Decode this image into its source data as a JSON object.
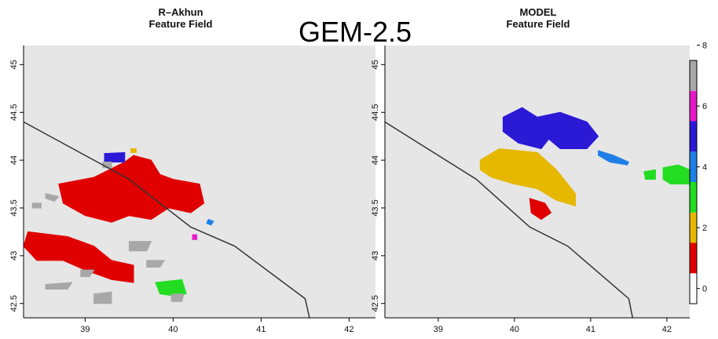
{
  "overlay_label": "GEM-2.5",
  "colors": {
    "panel_bg": "#e6e6e6",
    "boundary": "#333333",
    "red": "#e00000",
    "gray": "#a8a8a8",
    "blue": "#2a1ad6",
    "green": "#22dd22",
    "gold": "#e6b800",
    "lightblue": "#1e7fe6",
    "magenta": "#e619c8"
  },
  "chart_data": [
    {
      "type": "heatmap",
      "title_line1": "R–Akhun",
      "title_line2": "Feature Field",
      "xlim": [
        38.3,
        42.3
      ],
      "ylim": [
        42.35,
        45.2
      ],
      "x_ticks": [
        39,
        40,
        41,
        42
      ],
      "y_ticks": [
        42.5,
        43,
        43.5,
        44,
        44.5,
        45
      ],
      "y_tick_labels": [
        "42.5",
        "43",
        "43.5",
        "44",
        "44.5",
        "45"
      ],
      "boundary": [
        [
          38.3,
          44.4
        ],
        [
          39.5,
          43.8
        ],
        [
          40.2,
          43.3
        ],
        [
          40.7,
          43.1
        ],
        [
          41.5,
          42.55
        ],
        [
          41.55,
          42.35
        ]
      ],
      "features": [
        {
          "color": "red",
          "poly": [
            [
              38.7,
              43.75
            ],
            [
              39.1,
              43.82
            ],
            [
              39.45,
              43.98
            ],
            [
              39.55,
              44.05
            ],
            [
              39.75,
              44.0
            ],
            [
              39.85,
              43.85
            ],
            [
              40.0,
              43.8
            ],
            [
              40.3,
              43.75
            ],
            [
              40.35,
              43.55
            ],
            [
              40.2,
              43.45
            ],
            [
              39.95,
              43.5
            ],
            [
              39.75,
              43.38
            ],
            [
              39.5,
              43.42
            ],
            [
              39.3,
              43.35
            ],
            [
              39.0,
              43.42
            ],
            [
              38.75,
              43.55
            ]
          ]
        },
        {
          "color": "red",
          "poly": [
            [
              38.35,
              43.25
            ],
            [
              38.8,
              43.2
            ],
            [
              39.1,
              43.1
            ],
            [
              39.3,
              42.95
            ],
            [
              39.55,
              42.9
            ],
            [
              39.55,
              42.72
            ],
            [
              39.3,
              42.75
            ],
            [
              39.0,
              42.85
            ],
            [
              38.75,
              42.95
            ],
            [
              38.45,
              42.95
            ],
            [
              38.3,
              43.1
            ]
          ]
        },
        {
          "color": "blue",
          "poly": [
            [
              39.22,
              44.07
            ],
            [
              39.45,
              44.08
            ],
            [
              39.45,
              43.98
            ],
            [
              39.22,
              43.98
            ]
          ]
        },
        {
          "color": "gold",
          "poly": [
            [
              39.52,
              44.12
            ],
            [
              39.58,
              44.12
            ],
            [
              39.58,
              44.08
            ],
            [
              39.52,
              44.08
            ]
          ]
        },
        {
          "color": "magenta",
          "poly": [
            [
              40.22,
              43.22
            ],
            [
              40.27,
              43.22
            ],
            [
              40.27,
              43.17
            ],
            [
              40.22,
              43.17
            ]
          ]
        },
        {
          "color": "lightblue",
          "poly": [
            [
              40.4,
              43.38
            ],
            [
              40.46,
              43.36
            ],
            [
              40.43,
              43.32
            ],
            [
              40.38,
              43.34
            ]
          ]
        },
        {
          "color": "green",
          "poly": [
            [
              39.8,
              42.72
            ],
            [
              40.1,
              42.75
            ],
            [
              40.15,
              42.6
            ],
            [
              40.0,
              42.58
            ],
            [
              39.85,
              42.6
            ]
          ]
        },
        {
          "color": "gray",
          "poly": [
            [
              38.4,
              43.55
            ],
            [
              38.5,
              43.55
            ],
            [
              38.5,
              43.5
            ],
            [
              38.4,
              43.5
            ]
          ]
        },
        {
          "color": "gray",
          "poly": [
            [
              38.55,
              43.65
            ],
            [
              38.7,
              43.62
            ],
            [
              38.65,
              43.57
            ],
            [
              38.55,
              43.6
            ]
          ]
        },
        {
          "color": "gray",
          "poly": [
            [
              38.55,
              42.7
            ],
            [
              38.85,
              42.72
            ],
            [
              38.8,
              42.65
            ],
            [
              38.55,
              42.65
            ]
          ]
        },
        {
          "color": "gray",
          "poly": [
            [
              39.1,
              42.6
            ],
            [
              39.3,
              42.62
            ],
            [
              39.3,
              42.5
            ],
            [
              39.1,
              42.5
            ]
          ]
        },
        {
          "color": "gray",
          "poly": [
            [
              39.5,
              43.15
            ],
            [
              39.75,
              43.15
            ],
            [
              39.7,
              43.05
            ],
            [
              39.5,
              43.05
            ]
          ]
        },
        {
          "color": "gray",
          "poly": [
            [
              39.7,
              42.95
            ],
            [
              39.9,
              42.95
            ],
            [
              39.85,
              42.88
            ],
            [
              39.7,
              42.88
            ]
          ]
        },
        {
          "color": "gray",
          "poly": [
            [
              39.2,
              43.98
            ],
            [
              39.3,
              43.98
            ],
            [
              39.3,
              43.92
            ],
            [
              39.2,
              43.92
            ]
          ]
        },
        {
          "color": "gray",
          "poly": [
            [
              38.95,
              42.85
            ],
            [
              39.1,
              42.85
            ],
            [
              39.05,
              42.78
            ],
            [
              38.95,
              42.78
            ]
          ]
        },
        {
          "color": "gray",
          "poly": [
            [
              39.98,
              42.6
            ],
            [
              40.12,
              42.6
            ],
            [
              40.1,
              42.52
            ],
            [
              39.98,
              42.52
            ]
          ]
        }
      ]
    },
    {
      "type": "heatmap",
      "title_line1": "MODEL",
      "title_line2": "Feature Field",
      "xlim": [
        38.3,
        42.3
      ],
      "ylim": [
        42.35,
        45.2
      ],
      "x_ticks": [
        39,
        40,
        41,
        42
      ],
      "y_ticks": [
        42.5,
        43,
        43.5,
        44,
        44.5,
        45
      ],
      "y_tick_labels": [
        "42.5",
        "43",
        "43.5",
        "44",
        "44.5",
        "45"
      ],
      "boundary": [
        [
          38.3,
          44.4
        ],
        [
          39.5,
          43.8
        ],
        [
          40.2,
          43.3
        ],
        [
          40.7,
          43.1
        ],
        [
          41.5,
          42.55
        ],
        [
          41.55,
          42.35
        ]
      ],
      "features": [
        {
          "color": "blue",
          "poly": [
            [
              39.85,
              44.45
            ],
            [
              40.1,
              44.55
            ],
            [
              40.3,
              44.45
            ],
            [
              40.6,
              44.5
            ],
            [
              40.95,
              44.4
            ],
            [
              41.1,
              44.25
            ],
            [
              40.95,
              44.12
            ],
            [
              40.6,
              44.12
            ],
            [
              40.45,
              44.22
            ],
            [
              40.35,
              44.12
            ],
            [
              40.05,
              44.18
            ],
            [
              39.85,
              44.3
            ]
          ]
        },
        {
          "color": "gold",
          "poly": [
            [
              39.55,
              44.0
            ],
            [
              39.8,
              44.12
            ],
            [
              40.3,
              44.08
            ],
            [
              40.55,
              43.9
            ],
            [
              40.8,
              43.65
            ],
            [
              40.8,
              43.52
            ],
            [
              40.55,
              43.58
            ],
            [
              40.3,
              43.7
            ],
            [
              40.0,
              43.75
            ],
            [
              39.7,
              43.82
            ],
            [
              39.55,
              43.9
            ]
          ]
        },
        {
          "color": "red",
          "poly": [
            [
              40.2,
              43.6
            ],
            [
              40.4,
              43.55
            ],
            [
              40.48,
              43.45
            ],
            [
              40.35,
              43.38
            ],
            [
              40.22,
              43.45
            ]
          ]
        },
        {
          "color": "lightblue",
          "poly": [
            [
              41.1,
              44.1
            ],
            [
              41.3,
              44.05
            ],
            [
              41.5,
              43.98
            ],
            [
              41.48,
              43.95
            ],
            [
              41.25,
              43.98
            ],
            [
              41.1,
              44.05
            ]
          ]
        },
        {
          "color": "green",
          "poly": [
            [
              41.7,
              43.88
            ],
            [
              41.85,
              43.9
            ],
            [
              41.85,
              43.8
            ],
            [
              41.72,
              43.8
            ]
          ]
        },
        {
          "color": "green",
          "poly": [
            [
              41.95,
              43.92
            ],
            [
              42.15,
              43.95
            ],
            [
              42.3,
              43.9
            ],
            [
              42.3,
              43.75
            ],
            [
              42.05,
              43.75
            ],
            [
              41.95,
              43.8
            ]
          ]
        }
      ]
    }
  ],
  "colorbar": {
    "labels": [
      "0",
      "2",
      "4",
      "6",
      "8"
    ],
    "levels": [
      "white",
      "red",
      "gold",
      "green",
      "lightblue",
      "blue",
      "magenta",
      "gray"
    ]
  }
}
